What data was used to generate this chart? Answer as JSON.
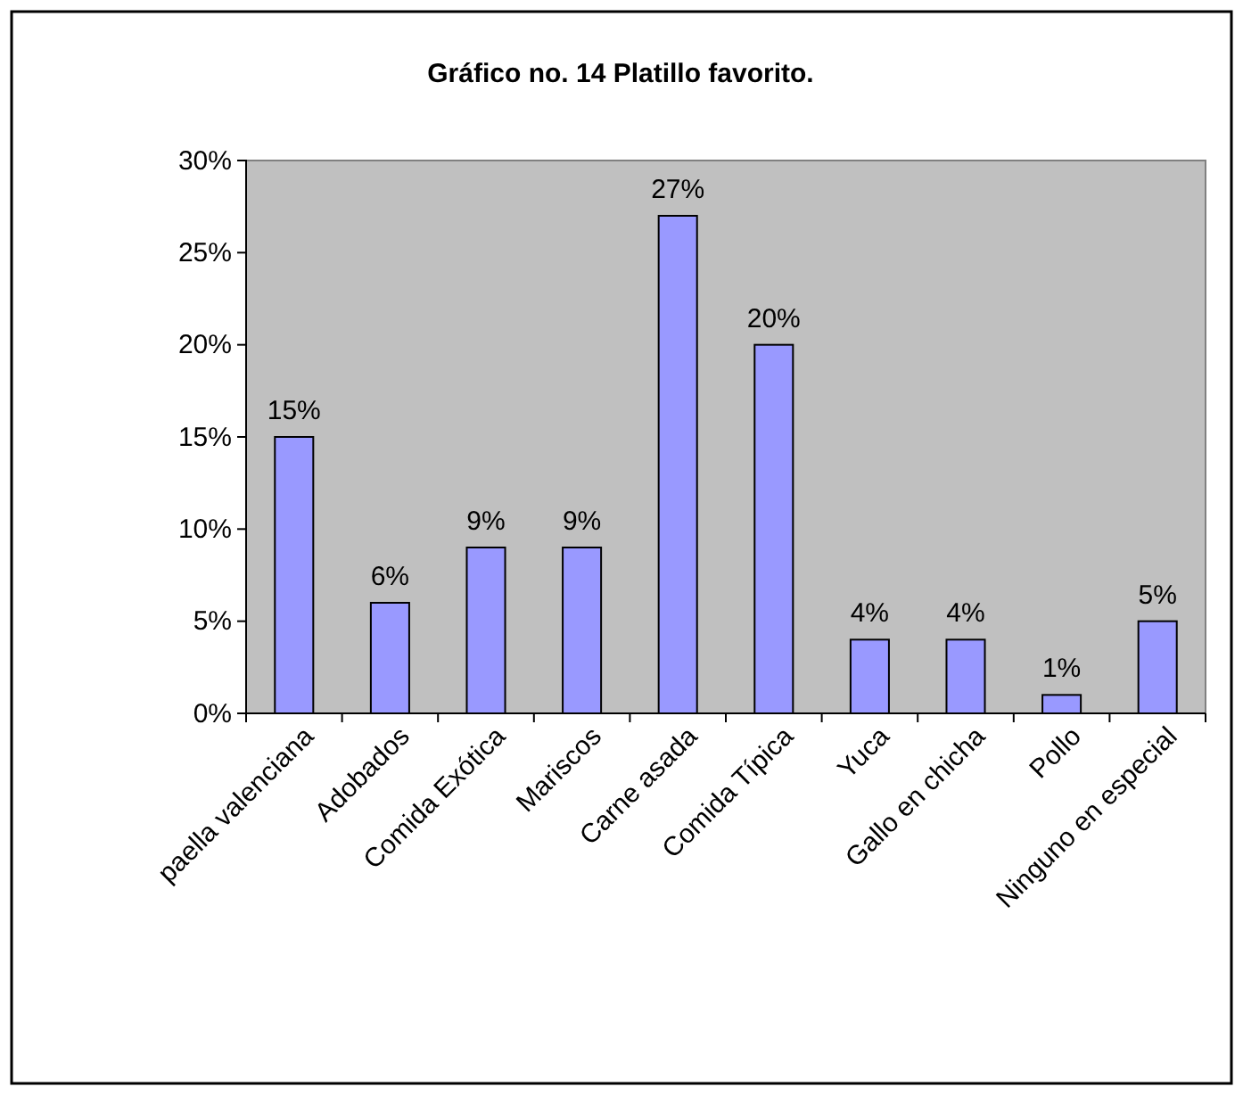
{
  "chart_data": {
    "type": "bar",
    "title": "Gráfico no. 14 Platillo favorito.",
    "categories": [
      "paella valenciana",
      "Adobados",
      "Comida Exótica",
      "Mariscos",
      "Carne asada",
      "Comida Típica",
      "Yuca",
      "Gallo en chicha",
      "Pollo",
      "Ninguno en especial"
    ],
    "values": [
      15,
      6,
      9,
      9,
      27,
      20,
      4,
      4,
      1,
      5
    ],
    "value_labels": [
      "15%",
      "6%",
      "9%",
      "9%",
      "27%",
      "20%",
      "4%",
      "4%",
      "1%",
      "5%"
    ],
    "color": "#9999ff",
    "ylim": [
      0,
      30
    ],
    "yticks": [
      {
        "value": 0,
        "label": "0%"
      },
      {
        "value": 5,
        "label": "5%"
      },
      {
        "value": 10,
        "label": "10%"
      },
      {
        "value": 15,
        "label": "15%"
      },
      {
        "value": 20,
        "label": "20%"
      },
      {
        "value": 25,
        "label": "25%"
      },
      {
        "value": 30,
        "label": "30%"
      }
    ],
    "grid": false
  }
}
